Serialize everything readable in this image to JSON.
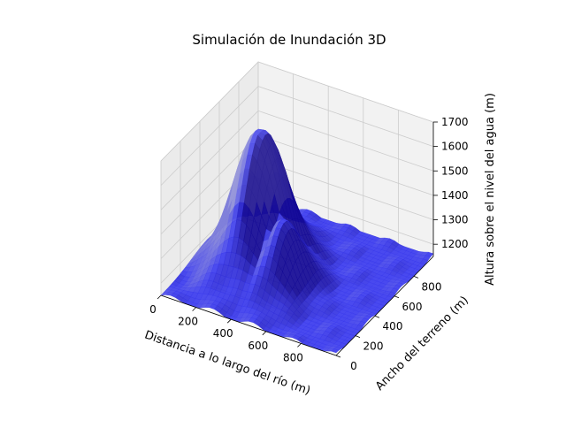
{
  "chart_data": {
    "type": "surface3d",
    "title": "Simulación de Inundación 3D",
    "xlabel": "Distancia a lo largo del río (m)",
    "ylabel": "Ancho del terreno (m)",
    "zlabel": "Altura sobre el nivel del agua (m)",
    "x_ticks": [
      0,
      200,
      400,
      600,
      800
    ],
    "y_ticks": [
      0,
      200,
      400,
      600,
      800
    ],
    "z_ticks": [
      1200,
      1300,
      1400,
      1500,
      1600,
      1700
    ],
    "xlim": [
      0,
      1000
    ],
    "ylim": [
      0,
      1000
    ],
    "zlim": [
      1150,
      1700
    ],
    "water_level": 1150,
    "surface_color": "#3a3aee",
    "surface_dark": "#00008b",
    "grid": true,
    "peaks": [
      {
        "x": 300,
        "y": 480,
        "z": 1720
      },
      {
        "x": 0,
        "y": 850,
        "z": 1310
      },
      {
        "x": 480,
        "y": 380,
        "z": 1420
      }
    ]
  }
}
